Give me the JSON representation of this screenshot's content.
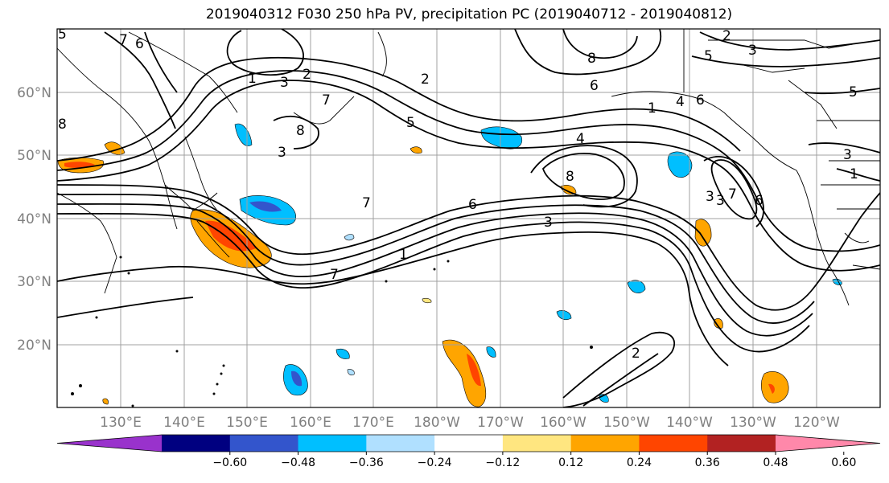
{
  "title": "2019040312 F030 250 hPa PV, precipitation PC (2019040712 - 2019040812)",
  "lat_labels": [
    "60°N",
    "50°N",
    "40°N",
    "30°N",
    "20°N"
  ],
  "lon_labels": [
    "130°E",
    "140°E",
    "150°E",
    "160°E",
    "170°E",
    "180°W",
    "170°W",
    "160°W",
    "150°W",
    "140°W",
    "130°W",
    "120°W"
  ],
  "contour_labels": [
    "7",
    "6",
    "5",
    "8",
    "1",
    "3",
    "2",
    "7",
    "3",
    "5",
    "6",
    "8",
    "4",
    "6",
    "8",
    "3",
    "4",
    "5",
    "2",
    "3",
    "1",
    "5",
    "3",
    "1",
    "7",
    "6",
    "3",
    "1",
    "7",
    "3",
    "2",
    "7",
    "6",
    "8",
    "2"
  ],
  "colorbar": {
    "ticks": [
      "−0.60",
      "−0.48",
      "−0.36",
      "−0.24",
      "−0.12",
      "0.12",
      "0.24",
      "0.36",
      "0.48",
      "0.60"
    ],
    "colors": [
      "#9932cc",
      "#000080",
      "#3355cc",
      "#00bfff",
      "#b0e0ff",
      "#ffffff",
      "#ffe680",
      "#ffa500",
      "#ff4500",
      "#b22222",
      "#ff88aa"
    ]
  },
  "colors": {
    "positive_light": "#ffe680",
    "positive_mid": "#ffa500",
    "positive_strong": "#ff4500",
    "negative_light": "#b0e0ff",
    "negative_mid": "#00bfff",
    "negative_strong": "#3355cc"
  }
}
